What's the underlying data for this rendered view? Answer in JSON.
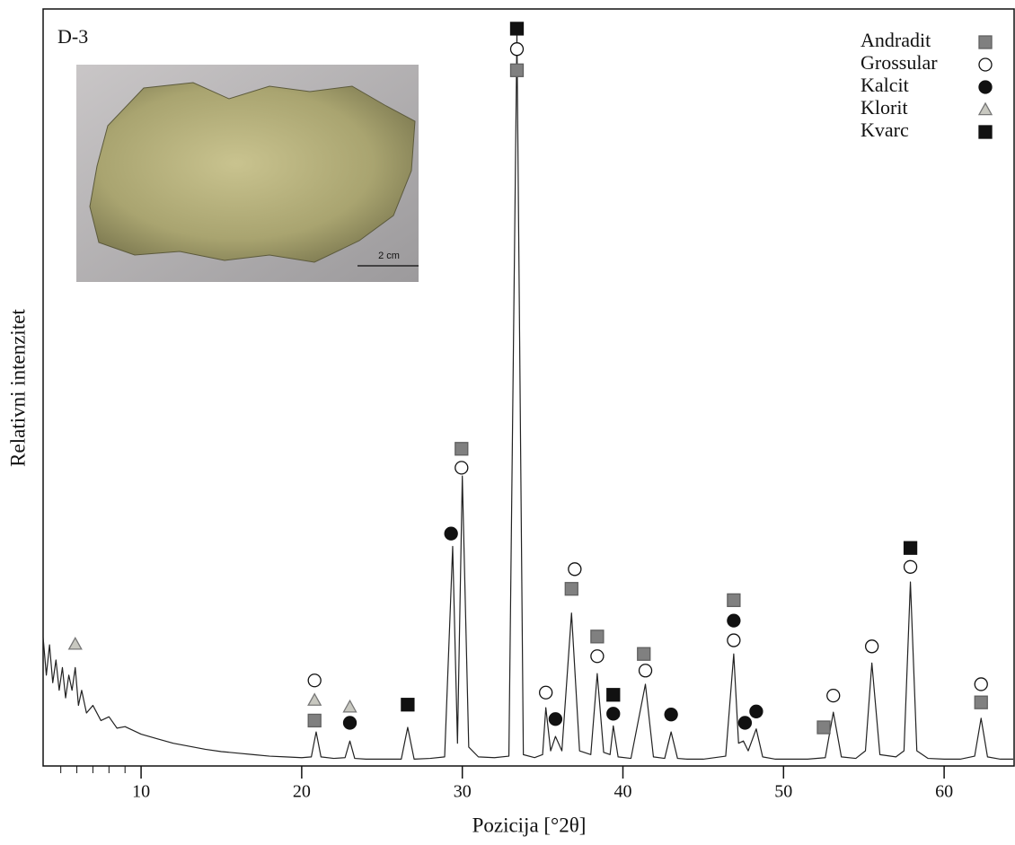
{
  "chart_data": {
    "type": "line",
    "title": "D-3",
    "x_label": "Pozicija [°2θ]",
    "y_label": "Relativni intenzitet",
    "line_color": "#222222",
    "xlim": [
      3.9,
      64.3
    ],
    "ylim": [
      0,
      100
    ],
    "xticks": [
      10,
      20,
      30,
      40,
      50,
      60
    ],
    "xminor": [
      5,
      6,
      7,
      8,
      9
    ],
    "x": [
      3.9,
      4.1,
      4.3,
      4.5,
      4.7,
      4.9,
      5.1,
      5.3,
      5.5,
      5.7,
      5.9,
      6.1,
      6.3,
      6.6,
      7.0,
      7.5,
      8,
      8.5,
      9,
      10,
      11,
      12,
      13,
      14,
      15,
      16,
      17,
      18,
      19,
      20,
      20.6,
      20.9,
      21.2,
      22,
      22.7,
      23.0,
      23.3,
      24,
      25,
      26.2,
      26.6,
      27,
      28,
      28.9,
      29.4,
      29.7,
      30.0,
      30.4,
      31,
      32,
      32.9,
      33.4,
      33.8,
      34.5,
      35.0,
      35.2,
      35.5,
      35.8,
      36.2,
      36.8,
      37.3,
      38.0,
      38.4,
      38.8,
      39.2,
      39.4,
      39.7,
      40.5,
      41.4,
      41.9,
      42.6,
      43.0,
      43.4,
      44,
      45,
      46.4,
      46.9,
      47.2,
      47.5,
      47.8,
      48.3,
      48.7,
      49.5,
      50.5,
      51.5,
      52.6,
      53.1,
      53.6,
      54.5,
      55.1,
      55.5,
      56.0,
      57.0,
      57.5,
      57.9,
      58.3,
      59,
      60,
      61,
      61.9,
      62.3,
      62.7,
      63.5,
      64.3
    ],
    "values": [
      17,
      12,
      16,
      11,
      14,
      10,
      13,
      9,
      12,
      10,
      13,
      8,
      10,
      7,
      8,
      6,
      6.5,
      5,
      5.2,
      4.2,
      3.6,
      3,
      2.6,
      2.2,
      1.9,
      1.7,
      1.5,
      1.3,
      1.2,
      1.1,
      1.2,
      4.5,
      1.2,
      1,
      1.1,
      3.3,
      1,
      0.9,
      0.9,
      0.9,
      5.1,
      0.9,
      1,
      1.2,
      29,
      3,
      38.3,
      2.5,
      1.2,
      1.1,
      1.3,
      96.7,
      1.5,
      1.1,
      1.5,
      7.7,
      2,
      3.9,
      2,
      20.2,
      2,
      1.5,
      12.2,
      1.8,
      1.5,
      5.3,
      1.2,
      1,
      10.8,
      1.2,
      1,
      4.5,
      1,
      0.9,
      0.9,
      1.3,
      14.8,
      3,
      3.3,
      2,
      4.9,
      1.2,
      0.9,
      0.9,
      0.9,
      1.1,
      7.1,
      1.2,
      1,
      2,
      13.6,
      1.5,
      1.2,
      2,
      24.3,
      2,
      1,
      0.9,
      0.9,
      1.3,
      6.3,
      1.2,
      0.9,
      0.9
    ],
    "legend": "top-right",
    "phases": [
      {
        "name": "Andradit",
        "marker": "square",
        "fill": "#808080",
        "stroke": "#606060",
        "x": [
          20.8,
          29.95,
          33.4,
          36.8,
          38.4,
          41.3,
          46.9,
          52.5,
          62.3
        ],
        "y": [
          6.0,
          41.9,
          91.9,
          23.4,
          17.1,
          14.8,
          21.9,
          5.1,
          8.4
        ]
      },
      {
        "name": "Grossular",
        "marker": "circle",
        "fill": "#ffffff",
        "stroke": "#111111",
        "x": [
          20.8,
          29.95,
          33.4,
          35.2,
          37.0,
          38.4,
          41.4,
          46.9,
          53.1,
          55.5,
          57.9,
          62.3
        ],
        "y": [
          11.3,
          39.4,
          94.7,
          9.7,
          26.0,
          14.5,
          12.6,
          16.6,
          9.3,
          15.8,
          26.3,
          10.8
        ]
      },
      {
        "name": "Kalcit",
        "marker": "circle",
        "fill": "#111111",
        "stroke": "#111111",
        "x": [
          23.0,
          29.3,
          35.8,
          39.4,
          43.0,
          46.9,
          47.6,
          48.3
        ],
        "y": [
          5.7,
          30.7,
          6.2,
          6.9,
          6.8,
          19.2,
          5.7,
          7.2
        ]
      },
      {
        "name": "Klorit",
        "marker": "triangle",
        "fill": "#c8c8c0",
        "stroke": "#777777",
        "x": [
          5.9,
          20.8,
          23.0
        ],
        "y": [
          16.1,
          8.7,
          7.8
        ]
      },
      {
        "name": "Kvarc",
        "marker": "square",
        "fill": "#111111",
        "stroke": "#111111",
        "x": [
          26.6,
          33.4,
          39.4,
          57.9
        ],
        "y": [
          8.1,
          97.4,
          9.4,
          28.8
        ]
      }
    ],
    "inset_scale_label": "2 cm"
  }
}
